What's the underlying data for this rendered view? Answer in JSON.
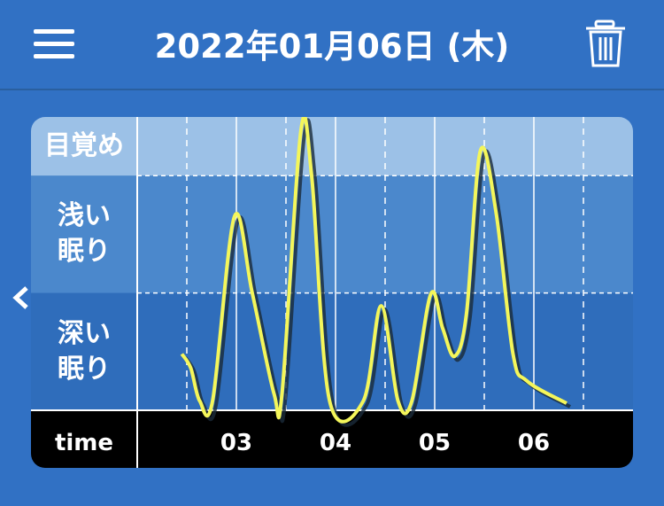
{
  "header": {
    "title": "2022年01月06日 (木)"
  },
  "chart_data": {
    "type": "line",
    "xlabel": "time",
    "xlim": [
      2,
      7
    ],
    "xticks": [
      {
        "value": 3,
        "label": "03"
      },
      {
        "value": 4,
        "label": "04"
      },
      {
        "value": 5,
        "label": "05"
      },
      {
        "value": 6,
        "label": "06"
      }
    ],
    "xminorticks": [
      2.5,
      3.5,
      4.5,
      5.5,
      6.5
    ],
    "ylim": [
      0,
      2.5
    ],
    "yticks": [
      {
        "value": 0.5,
        "label": "深い\n眠り"
      },
      {
        "value": 1.5,
        "label": "浅い\n眠り"
      },
      {
        "value": 2.25,
        "label": "目覚め"
      }
    ],
    "bands": [
      {
        "from": 0,
        "to": 1,
        "color": "#2f6dbb"
      },
      {
        "from": 1,
        "to": 2,
        "color": "#4b88cc"
      },
      {
        "from": 2,
        "to": 2.5,
        "color": "#9cc1e7"
      }
    ],
    "series": [
      {
        "color": "#f4f65a",
        "x": [
          2.45,
          2.54,
          2.63,
          2.76,
          2.98,
          3.16,
          3.38,
          3.46,
          3.65,
          3.76,
          3.94,
          4.28,
          4.46,
          4.63,
          4.77,
          4.96,
          5.08,
          5.2,
          5.32,
          5.46,
          5.62,
          5.79,
          5.93,
          6.33
        ],
        "values": [
          0.48,
          0.36,
          0.08,
          0.08,
          1.65,
          1.0,
          0.14,
          0.14,
          2.38,
          1.99,
          0.08,
          0.08,
          0.89,
          0.08,
          0.08,
          0.99,
          0.7,
          0.46,
          0.82,
          2.21,
          1.68,
          0.48,
          0.25,
          0.06
        ]
      }
    ]
  }
}
